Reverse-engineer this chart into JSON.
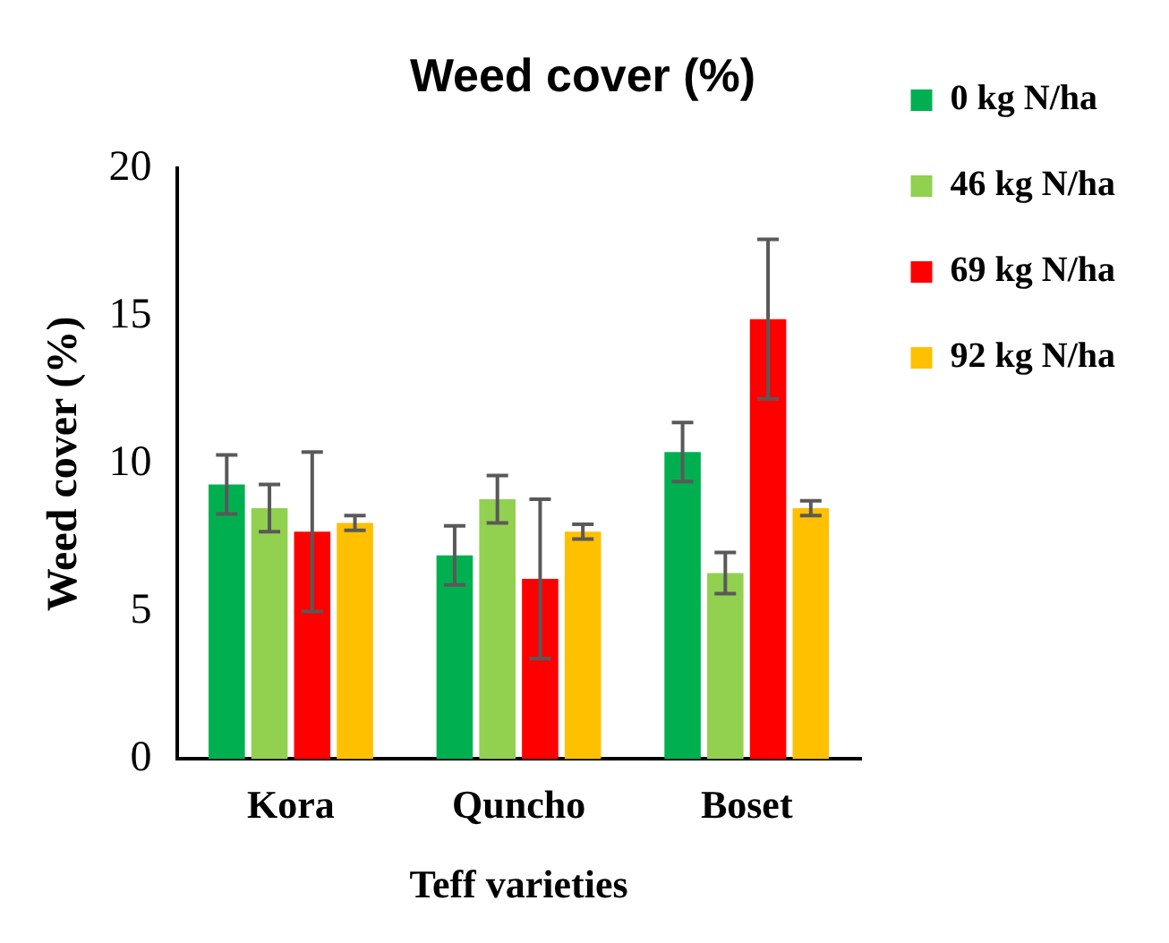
{
  "chart_data": {
    "type": "bar",
    "title": "Weed cover (%)",
    "xlabel": "Teff varieties",
    "ylabel": "Weed cover (%)",
    "categories": [
      "Kora",
      "Quncho",
      "Boset"
    ],
    "series": [
      {
        "name": "0 kg N/ha",
        "color": "#00b050",
        "values": [
          9.3,
          6.9,
          10.4
        ],
        "errors": [
          1.0,
          1.0,
          1.0
        ]
      },
      {
        "name": "46 kg N/ha",
        "color": "#92d050",
        "values": [
          8.5,
          8.8,
          6.3
        ],
        "errors": [
          0.8,
          0.8,
          0.7
        ]
      },
      {
        "name": "69 kg N/ha",
        "color": "#ff0000",
        "values": [
          7.7,
          6.1,
          14.9
        ],
        "errors": [
          2.7,
          2.7,
          2.7
        ]
      },
      {
        "name": "92 kg N/ha",
        "color": "#ffc000",
        "values": [
          8.0,
          7.7,
          8.5
        ],
        "errors": [
          0.25,
          0.25,
          0.25
        ]
      }
    ],
    "ylim": [
      0,
      20
    ],
    "yticks": [
      0,
      5,
      10,
      15,
      20
    ],
    "grid": false,
    "legend": "right"
  }
}
